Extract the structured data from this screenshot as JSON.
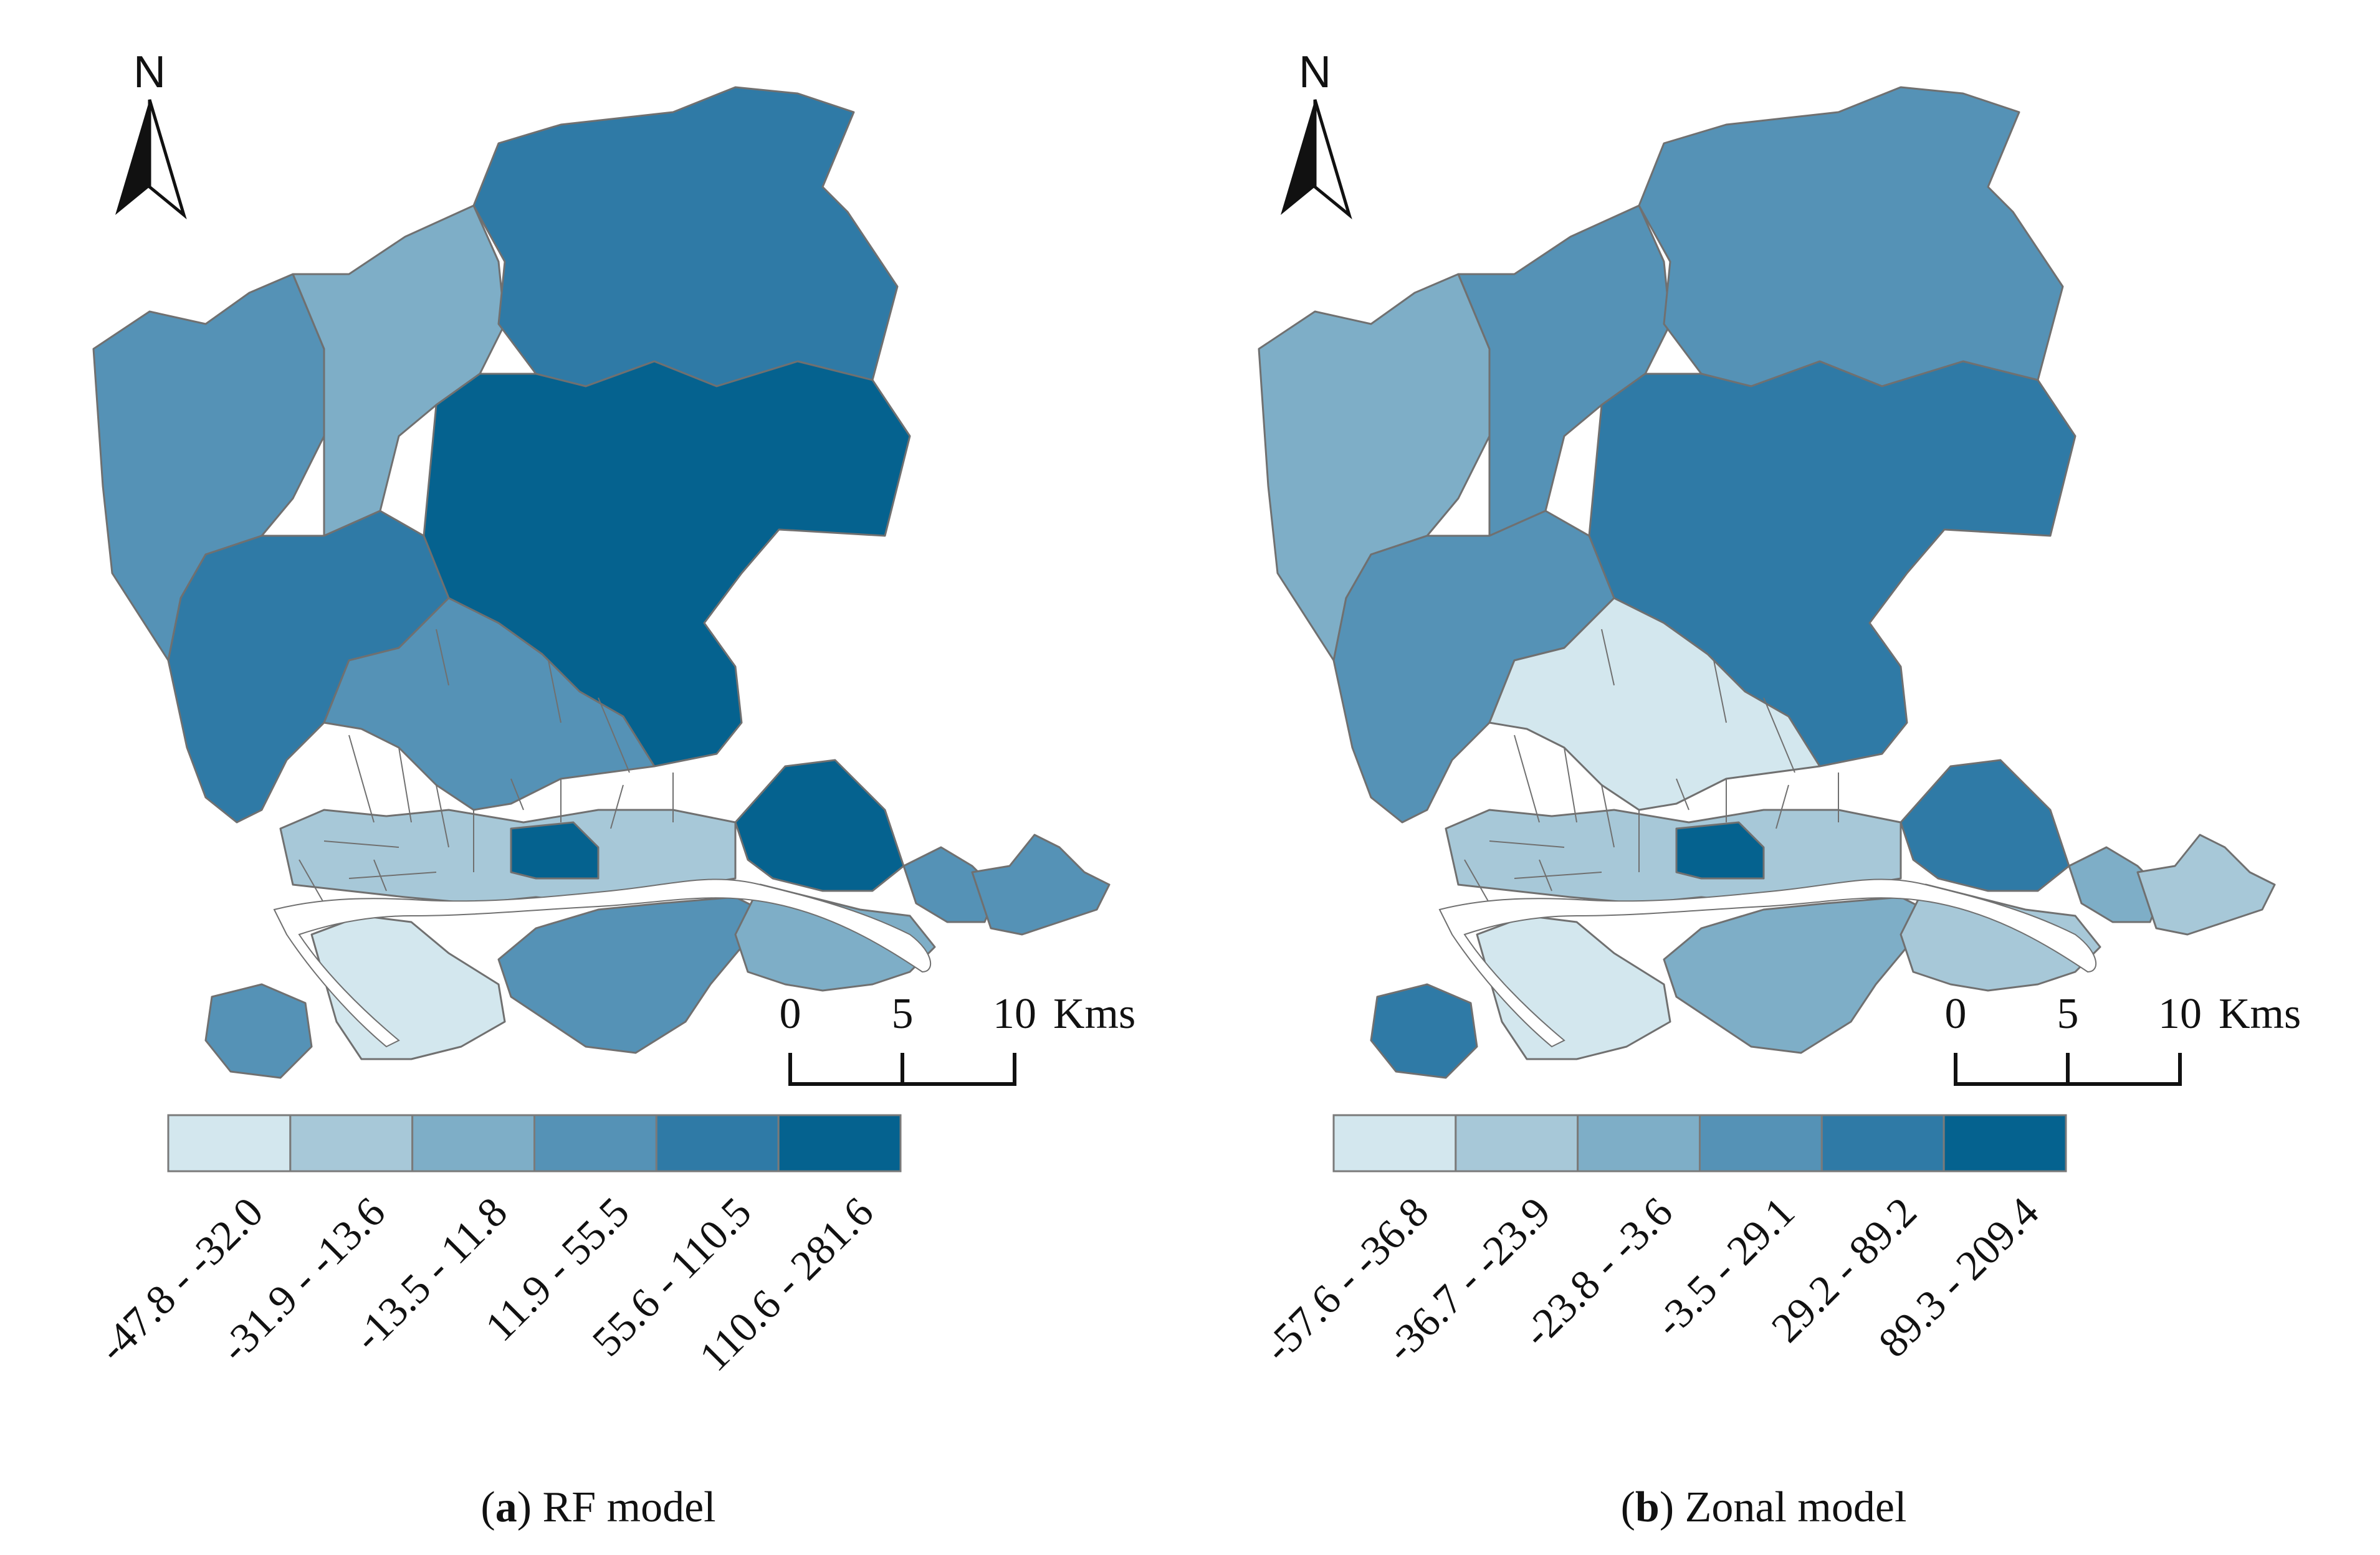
{
  "colors": {
    "classes": [
      "#d3e7ee",
      "#a7c8d8",
      "#7eaec7",
      "#5592b6",
      "#2f7aa6",
      "#05628f"
    ],
    "boundary": "#707070",
    "river": "#ffffff",
    "legend_border": "#7a7a7a",
    "ink": "#111111"
  },
  "north_label": "N",
  "scale_bar": {
    "ticks": [
      "0",
      "5",
      "10"
    ],
    "unit": "Kms"
  },
  "panels": [
    {
      "id": "a",
      "caption_letter": "a",
      "caption_text": " RF model",
      "legend_labels": [
        "-47.8 - -32.0",
        "-31.9 - -13.6",
        "-13.5 - 11.8",
        "11.9 - 55.5",
        "55.6 - 110.5",
        "110.6 - 281.6"
      ],
      "class_levels": {
        "northwest": 3,
        "north_central": 2,
        "far_north": 4,
        "central_core": 5,
        "west_belt": 4,
        "inner_mid": 3,
        "south_strip": 1,
        "south_coast": 3,
        "east_coast": 2,
        "east_small": 3,
        "far_east": 3,
        "central_blocks": 5,
        "river_south_light": 0,
        "southwest_pods": 3,
        "east_inner": 5
      }
    },
    {
      "id": "b",
      "caption_letter": "b",
      "caption_text": " Zonal model",
      "legend_labels": [
        "-57.6 - -36.8",
        "-36.7 - -23.9",
        "-23.8 - -3.6",
        "-3.5 - 29.1",
        "29.2 - 89.2",
        "89.3 - 209.4"
      ],
      "class_levels": {
        "northwest": 2,
        "north_central": 3,
        "far_north": 3,
        "central_core": 4,
        "west_belt": 3,
        "inner_mid": 0,
        "south_strip": 1,
        "south_coast": 2,
        "east_coast": 1,
        "east_small": 2,
        "far_east": 1,
        "central_blocks": 5,
        "river_south_light": 0,
        "southwest_pods": 4,
        "east_inner": 4
      }
    }
  ]
}
